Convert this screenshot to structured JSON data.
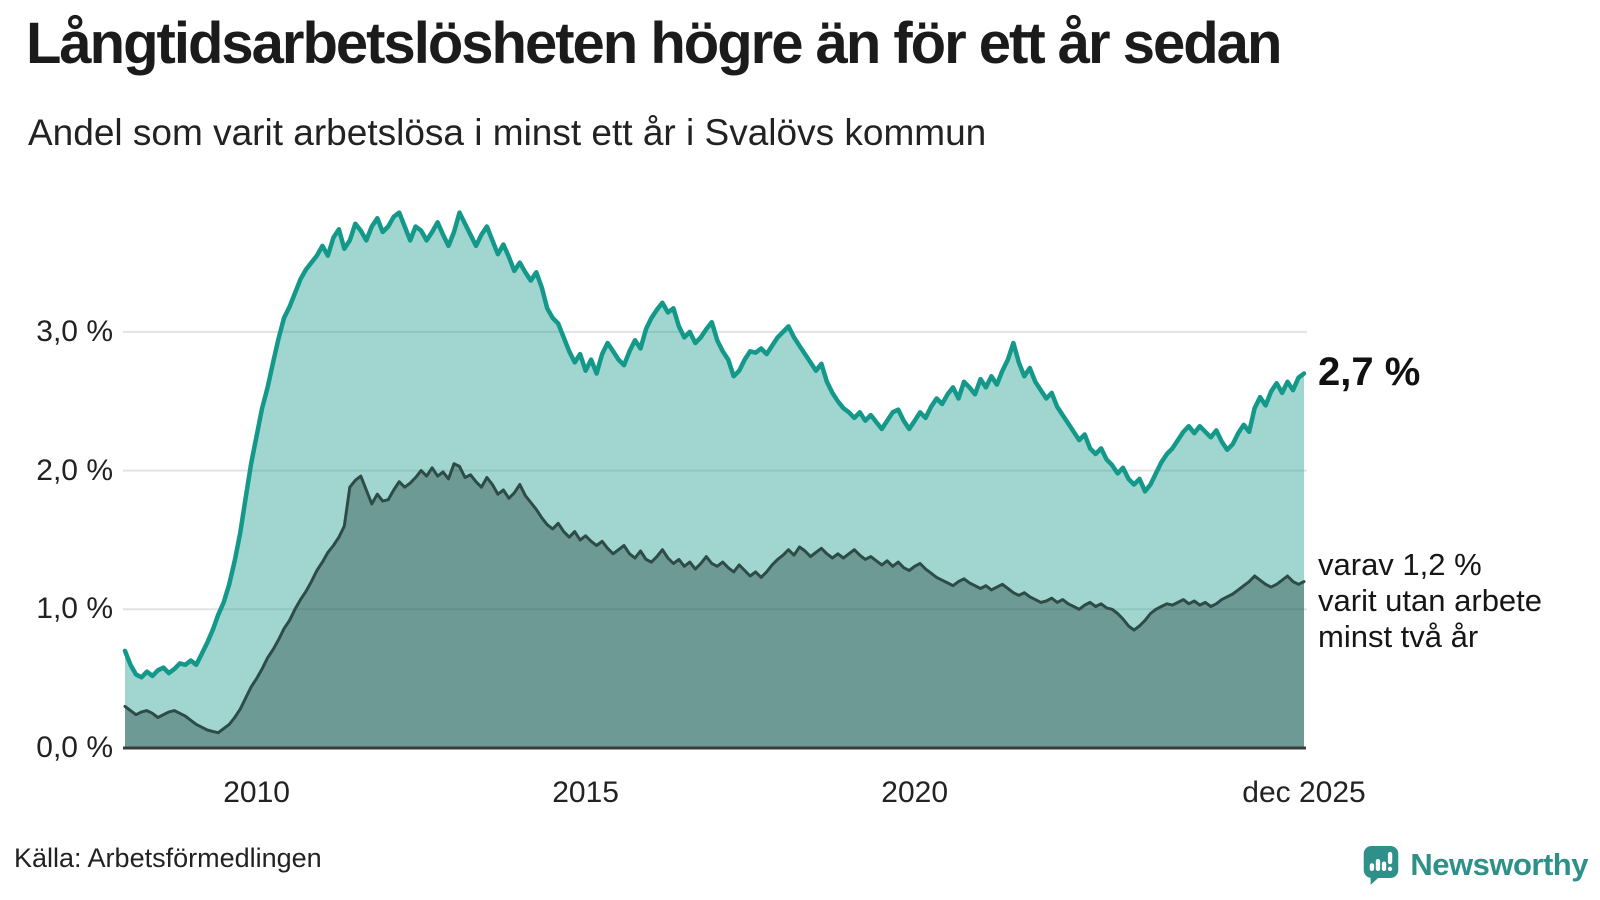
{
  "header": {
    "title": "Långtidsarbetslösheten högre än för ett år sedan",
    "subtitle": "Andel som varit arbetslösa i minst ett år i Svalövs kommun"
  },
  "chart_data": {
    "type": "area",
    "title": "Långtidsarbetslösheten högre än för ett år sedan",
    "subtitle": "Andel som varit arbetslösa i minst ett år i Svalövs kommun",
    "x_unit": "month",
    "x_range": "jan 2008 – dec 2025",
    "ylim": [
      0,
      4
    ],
    "grid": true,
    "y_ticks": [
      {
        "value": 0,
        "label": "0,0 %"
      },
      {
        "value": 1,
        "label": "1,0 %"
      },
      {
        "value": 2,
        "label": "2,0 %"
      },
      {
        "value": 3,
        "label": "3,0 %"
      }
    ],
    "x_ticks": [
      {
        "month_index": 24,
        "label": "2010"
      },
      {
        "month_index": 84,
        "label": "2015"
      },
      {
        "month_index": 144,
        "label": "2020"
      },
      {
        "month_index": 215,
        "label": "dec 2025"
      }
    ],
    "series": [
      {
        "name": "Andel arbetslösa minst ett år",
        "color": "#13988a",
        "fill": "rgba(19,152,138,0.40)",
        "stroke_width": 4.5,
        "values": [
          0.7,
          0.6,
          0.53,
          0.51,
          0.55,
          0.52,
          0.56,
          0.58,
          0.54,
          0.57,
          0.61,
          0.6,
          0.63,
          0.6,
          0.68,
          0.76,
          0.85,
          0.96,
          1.05,
          1.18,
          1.35,
          1.55,
          1.8,
          2.05,
          2.25,
          2.45,
          2.6,
          2.78,
          2.95,
          3.1,
          3.18,
          3.28,
          3.38,
          3.45,
          3.5,
          3.55,
          3.62,
          3.55,
          3.68,
          3.74,
          3.6,
          3.66,
          3.78,
          3.73,
          3.66,
          3.76,
          3.82,
          3.72,
          3.76,
          3.83,
          3.86,
          3.76,
          3.66,
          3.76,
          3.73,
          3.66,
          3.72,
          3.79,
          3.7,
          3.62,
          3.72,
          3.86,
          3.78,
          3.7,
          3.62,
          3.7,
          3.76,
          3.66,
          3.56,
          3.63,
          3.54,
          3.44,
          3.5,
          3.43,
          3.37,
          3.43,
          3.32,
          3.17,
          3.1,
          3.06,
          2.96,
          2.86,
          2.78,
          2.84,
          2.72,
          2.8,
          2.7,
          2.84,
          2.92,
          2.86,
          2.8,
          2.76,
          2.86,
          2.94,
          2.88,
          3.02,
          3.1,
          3.16,
          3.21,
          3.14,
          3.17,
          3.04,
          2.96,
          3.0,
          2.92,
          2.96,
          3.02,
          3.07,
          2.94,
          2.86,
          2.8,
          2.68,
          2.72,
          2.8,
          2.86,
          2.85,
          2.88,
          2.84,
          2.9,
          2.96,
          3.0,
          3.04,
          2.96,
          2.9,
          2.84,
          2.78,
          2.72,
          2.77,
          2.64,
          2.56,
          2.5,
          2.45,
          2.42,
          2.38,
          2.42,
          2.36,
          2.4,
          2.35,
          2.3,
          2.36,
          2.42,
          2.44,
          2.36,
          2.3,
          2.36,
          2.42,
          2.38,
          2.46,
          2.52,
          2.48,
          2.55,
          2.6,
          2.52,
          2.64,
          2.6,
          2.55,
          2.66,
          2.6,
          2.68,
          2.62,
          2.72,
          2.8,
          2.92,
          2.78,
          2.68,
          2.74,
          2.64,
          2.58,
          2.52,
          2.56,
          2.46,
          2.4,
          2.34,
          2.28,
          2.22,
          2.26,
          2.16,
          2.12,
          2.16,
          2.08,
          2.04,
          1.98,
          2.02,
          1.94,
          1.9,
          1.94,
          1.85,
          1.9,
          1.98,
          2.06,
          2.12,
          2.16,
          2.22,
          2.28,
          2.32,
          2.27,
          2.32,
          2.28,
          2.24,
          2.29,
          2.21,
          2.15,
          2.19,
          2.27,
          2.33,
          2.28,
          2.45,
          2.53,
          2.47,
          2.57,
          2.63,
          2.56,
          2.64,
          2.58,
          2.67,
          2.7
        ]
      },
      {
        "name": "Andel arbetslösa minst två år",
        "color": "#2e4c47",
        "fill": "rgba(40,72,66,0.42)",
        "stroke_width": 3,
        "values": [
          0.3,
          0.27,
          0.24,
          0.26,
          0.27,
          0.25,
          0.22,
          0.24,
          0.26,
          0.27,
          0.25,
          0.23,
          0.2,
          0.17,
          0.15,
          0.13,
          0.12,
          0.11,
          0.14,
          0.17,
          0.22,
          0.28,
          0.36,
          0.44,
          0.5,
          0.57,
          0.65,
          0.71,
          0.78,
          0.86,
          0.92,
          1.0,
          1.07,
          1.13,
          1.2,
          1.28,
          1.34,
          1.41,
          1.46,
          1.52,
          1.6,
          1.88,
          1.93,
          1.96,
          1.86,
          1.76,
          1.83,
          1.78,
          1.79,
          1.86,
          1.92,
          1.88,
          1.91,
          1.95,
          2.0,
          1.96,
          2.02,
          1.96,
          1.99,
          1.94,
          2.05,
          2.03,
          1.95,
          1.97,
          1.92,
          1.88,
          1.95,
          1.9,
          1.83,
          1.86,
          1.8,
          1.84,
          1.9,
          1.82,
          1.77,
          1.72,
          1.66,
          1.61,
          1.58,
          1.62,
          1.56,
          1.52,
          1.56,
          1.5,
          1.53,
          1.49,
          1.46,
          1.49,
          1.44,
          1.4,
          1.43,
          1.46,
          1.4,
          1.37,
          1.42,
          1.36,
          1.34,
          1.38,
          1.43,
          1.37,
          1.33,
          1.36,
          1.31,
          1.34,
          1.29,
          1.33,
          1.38,
          1.33,
          1.31,
          1.34,
          1.3,
          1.27,
          1.32,
          1.28,
          1.24,
          1.27,
          1.23,
          1.27,
          1.32,
          1.36,
          1.39,
          1.43,
          1.39,
          1.45,
          1.42,
          1.38,
          1.41,
          1.44,
          1.4,
          1.37,
          1.4,
          1.37,
          1.4,
          1.43,
          1.39,
          1.36,
          1.38,
          1.35,
          1.32,
          1.35,
          1.31,
          1.34,
          1.3,
          1.28,
          1.31,
          1.33,
          1.29,
          1.26,
          1.23,
          1.21,
          1.19,
          1.17,
          1.2,
          1.22,
          1.19,
          1.17,
          1.15,
          1.17,
          1.14,
          1.16,
          1.18,
          1.15,
          1.12,
          1.1,
          1.12,
          1.09,
          1.07,
          1.05,
          1.06,
          1.08,
          1.05,
          1.07,
          1.04,
          1.02,
          1.0,
          1.03,
          1.05,
          1.02,
          1.04,
          1.01,
          1.0,
          0.97,
          0.93,
          0.88,
          0.85,
          0.88,
          0.92,
          0.97,
          1.0,
          1.02,
          1.04,
          1.03,
          1.05,
          1.07,
          1.04,
          1.06,
          1.03,
          1.05,
          1.02,
          1.04,
          1.07,
          1.09,
          1.11,
          1.14,
          1.17,
          1.2,
          1.24,
          1.21,
          1.18,
          1.16,
          1.18,
          1.21,
          1.24,
          1.2,
          1.18,
          1.2
        ]
      }
    ],
    "annotations": {
      "latest_value": "2,7 %",
      "secondary": [
        "varav 1,2 %",
        "varit utan arbete",
        "minst två år"
      ]
    }
  },
  "footer": {
    "source": "Källa: Arbetsförmedlingen",
    "brand": "Newsworthy"
  },
  "colors": {
    "accent_teal": "#13988a",
    "dark_teal": "#2e4c47",
    "brand_teal": "#2f9089",
    "grid": "#e3e3e7",
    "axis": "#3a3a3a"
  }
}
